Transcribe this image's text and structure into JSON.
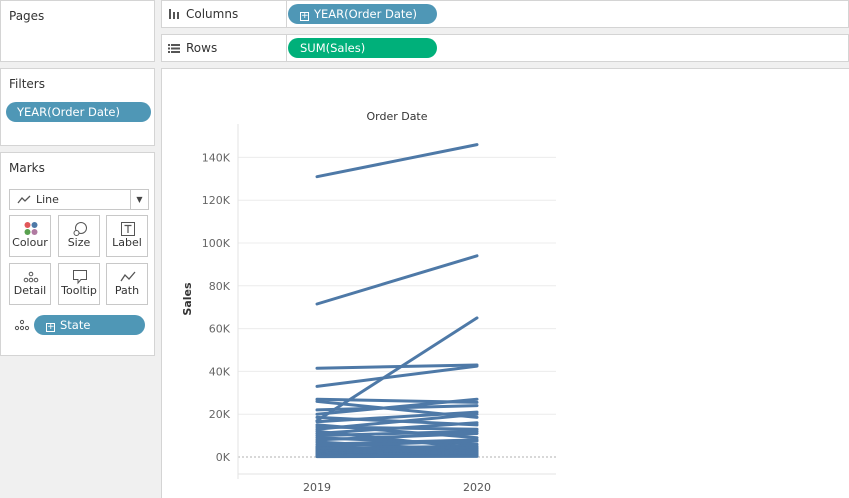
{
  "pages": {
    "title": "Pages"
  },
  "filters": {
    "title": "Filters",
    "pills": [
      "YEAR(Order Date)"
    ]
  },
  "marks": {
    "title": "Marks",
    "mark_type": "Line",
    "buttons": {
      "colour": "Colour",
      "size": "Size",
      "label": "Label",
      "detail": "Detail",
      "tooltip": "Tooltip",
      "path": "Path"
    },
    "detail_field": "State"
  },
  "shelves": {
    "columns": {
      "label": "Columns",
      "pill": "YEAR(Order Date)"
    },
    "rows": {
      "label": "Rows",
      "pill": "SUM(Sales)"
    }
  },
  "colors": {
    "pill_blue": "#4f97b6",
    "pill_green": "#00b07a",
    "line": "#4e79a7"
  },
  "chart_data": {
    "type": "line",
    "title": "Order Date",
    "xlabel": "",
    "ylabel": "Sales",
    "x": [
      "2019",
      "2020"
    ],
    "ylim": [
      0,
      150000
    ],
    "yticks": [
      0,
      20000,
      40000,
      60000,
      80000,
      100000,
      120000,
      140000
    ],
    "ytick_labels": [
      "0K",
      "20K",
      "40K",
      "60K",
      "80K",
      "100K",
      "120K",
      "140K"
    ],
    "grid": true,
    "series": [
      {
        "values": [
          131000,
          146000
        ]
      },
      {
        "values": [
          71500,
          94000
        ]
      },
      {
        "values": [
          17000,
          65000
        ]
      },
      {
        "values": [
          41500,
          43000
        ]
      },
      {
        "values": [
          33000,
          42500
        ]
      },
      {
        "values": [
          27000,
          25500
        ]
      },
      {
        "values": [
          26000,
          18500
        ]
      },
      {
        "values": [
          22000,
          24000
        ]
      },
      {
        "values": [
          20000,
          27000
        ]
      },
      {
        "values": [
          18500,
          15000
        ]
      },
      {
        "values": [
          16500,
          21000
        ]
      },
      {
        "values": [
          15000,
          9000
        ]
      },
      {
        "values": [
          14000,
          13000
        ]
      },
      {
        "values": [
          13000,
          20000
        ]
      },
      {
        "values": [
          12000,
          4000
        ]
      },
      {
        "values": [
          11000,
          16000
        ]
      },
      {
        "values": [
          10000,
          12000
        ]
      },
      {
        "values": [
          9000,
          6000
        ]
      },
      {
        "values": [
          8000,
          11000
        ]
      },
      {
        "values": [
          7000,
          3000
        ]
      },
      {
        "values": [
          6000,
          8000
        ]
      },
      {
        "values": [
          5000,
          7500
        ]
      },
      {
        "values": [
          4500,
          2000
        ]
      },
      {
        "values": [
          4000,
          5000
        ]
      },
      {
        "values": [
          3500,
          4200
        ]
      },
      {
        "values": [
          3000,
          1500
        ]
      },
      {
        "values": [
          2600,
          3300
        ]
      },
      {
        "values": [
          2200,
          2800
        ]
      },
      {
        "values": [
          1900,
          900
        ]
      },
      {
        "values": [
          1600,
          2400
        ]
      },
      {
        "values": [
          1300,
          1800
        ]
      },
      {
        "values": [
          1000,
          1400
        ]
      },
      {
        "values": [
          800,
          600
        ]
      },
      {
        "values": [
          600,
          1100
        ]
      },
      {
        "values": [
          400,
          700
        ]
      },
      {
        "values": [
          300,
          500
        ]
      },
      {
        "values": [
          200,
          300
        ]
      }
    ]
  }
}
